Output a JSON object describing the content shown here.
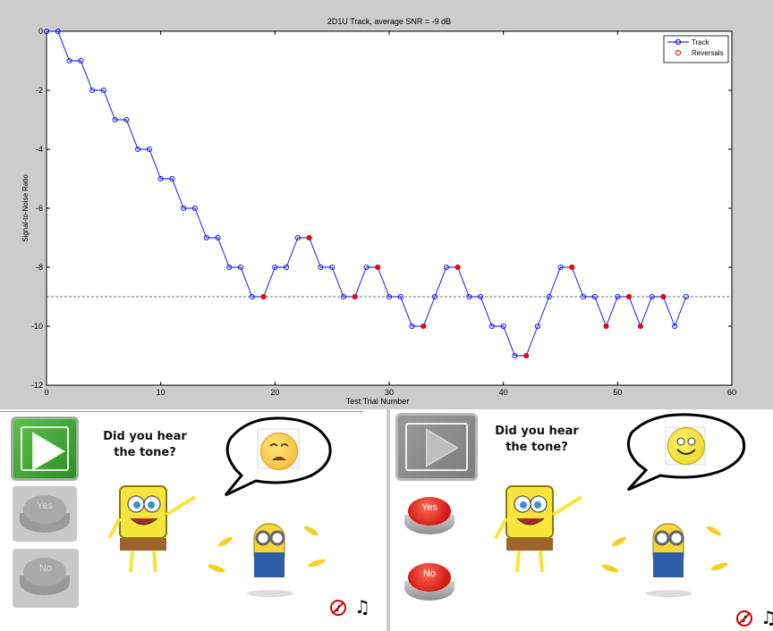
{
  "chart_data": {
    "type": "line",
    "title": "2D1U Track, average SNR = -9 dB",
    "xlabel": "Test Trial Number",
    "ylabel": "Signal-to-Noise Ratio",
    "xlim": [
      0,
      60
    ],
    "ylim": [
      -12,
      0
    ],
    "xticks": [
      0,
      10,
      20,
      30,
      40,
      50,
      60
    ],
    "yticks": [
      0,
      -2,
      -4,
      -6,
      -8,
      -10,
      -12
    ],
    "legend_position": "top-right",
    "reference_line": -9,
    "series": [
      {
        "name": "Track",
        "color": "#0000ff",
        "x": [
          0,
          1,
          2,
          3,
          4,
          5,
          6,
          7,
          8,
          9,
          10,
          11,
          12,
          13,
          14,
          15,
          16,
          17,
          18,
          19,
          20,
          21,
          22,
          23,
          24,
          25,
          26,
          27,
          28,
          29,
          30,
          31,
          32,
          33,
          34,
          35,
          36,
          37,
          38,
          39,
          40,
          41,
          42,
          43,
          44,
          45,
          46,
          47,
          48,
          49,
          50,
          51,
          52,
          53,
          54,
          55,
          56
        ],
        "y": [
          0,
          0,
          -1,
          -1,
          -2,
          -2,
          -3,
          -3,
          -4,
          -4,
          -5,
          -5,
          -6,
          -6,
          -7,
          -7,
          -8,
          -8,
          -9,
          -9,
          -8,
          -8,
          -7,
          -7,
          -8,
          -8,
          -9,
          -9,
          -8,
          -8,
          -9,
          -9,
          -10,
          -10,
          -9,
          -8,
          -8,
          -9,
          -9,
          -10,
          -10,
          -11,
          -11,
          -10,
          -9,
          -8,
          -8,
          -9,
          -9,
          -10,
          -9,
          -9,
          -10,
          -9,
          -9,
          -10,
          -9
        ]
      },
      {
        "name": "Reversals",
        "color": "#ff0000",
        "x": [
          19,
          23,
          27,
          29,
          33,
          36,
          42,
          46,
          49,
          51,
          52,
          54
        ],
        "y": [
          -9,
          -7,
          -9,
          -8,
          -10,
          -8,
          -11,
          -8,
          -10,
          -9,
          -10,
          -9
        ]
      }
    ]
  },
  "left_panel": {
    "question": [
      "Did you hear",
      "the tone?"
    ],
    "yes_label": "Yes",
    "no_label": "No"
  },
  "right_panel": {
    "question": [
      "Did you hear",
      "the tone?"
    ],
    "yes_label": "Yes",
    "no_label": "No"
  }
}
